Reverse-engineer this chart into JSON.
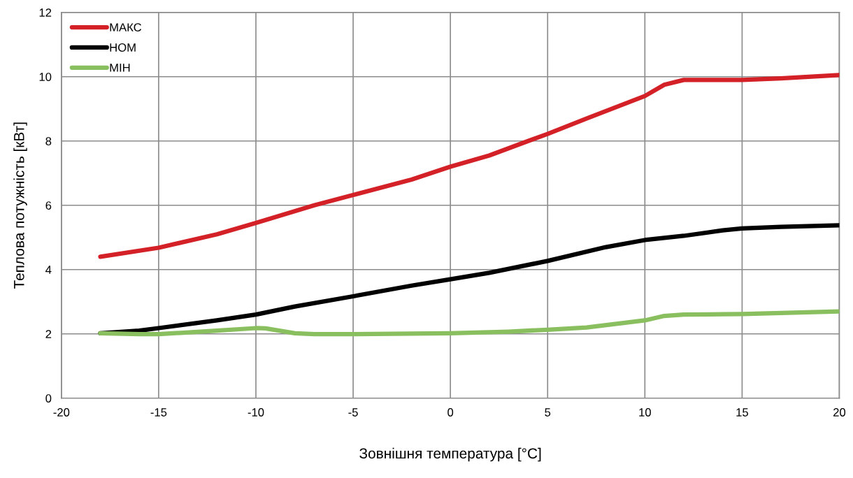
{
  "chart_data": {
    "type": "line",
    "xlabel": "Зовнішня температура [°C]",
    "ylabel": "Теплова потужність [кВт]",
    "xlim": [
      -20,
      20
    ],
    "xticks": [
      -20,
      -15,
      -10,
      -5,
      0,
      5,
      10,
      15,
      20
    ],
    "ylim": [
      0,
      12
    ],
    "yticks": [
      0,
      2,
      4,
      6,
      8,
      10,
      12
    ],
    "grid": true,
    "legend": "top left",
    "marker": "none",
    "line_style": "solid",
    "series": [
      {
        "name": "МАКС",
        "color": "#d42027",
        "x": [
          -18,
          -15,
          -12,
          -10,
          -7,
          -5,
          -2,
          0,
          2,
          4,
          5,
          7,
          10,
          11,
          12,
          13,
          15,
          17,
          20
        ],
        "values": [
          4.4,
          4.68,
          5.1,
          5.45,
          6.0,
          6.32,
          6.8,
          7.2,
          7.55,
          8.0,
          8.22,
          8.7,
          9.4,
          9.75,
          9.9,
          9.9,
          9.9,
          9.95,
          10.05
        ]
      },
      {
        "name": "НОМ",
        "color": "#000000",
        "x": [
          -18,
          -16,
          -15,
          -12,
          -10,
          -8,
          -5,
          -2,
          0,
          2,
          5,
          8,
          10,
          12,
          14,
          15,
          17,
          20
        ],
        "values": [
          2.02,
          2.1,
          2.18,
          2.42,
          2.6,
          2.85,
          3.17,
          3.5,
          3.7,
          3.9,
          4.27,
          4.7,
          4.92,
          5.05,
          5.22,
          5.28,
          5.33,
          5.38
        ]
      },
      {
        "name": "МІН",
        "color": "#8abf5f",
        "x": [
          -18,
          -16,
          -15,
          -12,
          -10,
          -9.5,
          -8,
          -7,
          -5,
          0,
          3,
          5,
          7,
          10,
          11,
          12,
          14,
          15,
          20
        ],
        "values": [
          2.02,
          1.99,
          1.99,
          2.1,
          2.18,
          2.17,
          2.02,
          1.99,
          1.99,
          2.02,
          2.07,
          2.13,
          2.2,
          2.42,
          2.56,
          2.6,
          2.61,
          2.62,
          2.7
        ]
      }
    ]
  }
}
